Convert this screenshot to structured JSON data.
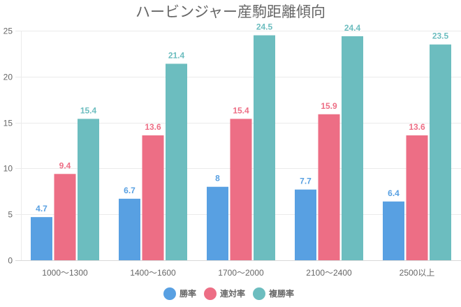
{
  "chart_data": {
    "type": "bar",
    "title": "ハービンジャー産駒距離傾向",
    "xlabel": "",
    "ylabel": "",
    "ylim": [
      0,
      25
    ],
    "yticks": [
      0,
      5,
      10,
      15,
      20,
      25
    ],
    "grid": true,
    "legend_position": "bottom",
    "categories": [
      "1000〜1300",
      "1400〜1600",
      "1700〜2000",
      "2100〜2400",
      "2500以上"
    ],
    "series": [
      {
        "name": "勝率",
        "color": "#58a0e2",
        "label_color": "#58a0e2",
        "values": [
          4.7,
          6.7,
          8,
          7.7,
          6.4
        ]
      },
      {
        "name": "連対率",
        "color": "#ed6e85",
        "label_color": "#ed6e85",
        "values": [
          9.4,
          13.6,
          15.4,
          15.9,
          13.6
        ]
      },
      {
        "name": "複勝率",
        "color": "#6cbdbf",
        "label_color": "#6cbdbf",
        "values": [
          15.4,
          21.4,
          24.5,
          24.4,
          23.5
        ]
      }
    ]
  }
}
